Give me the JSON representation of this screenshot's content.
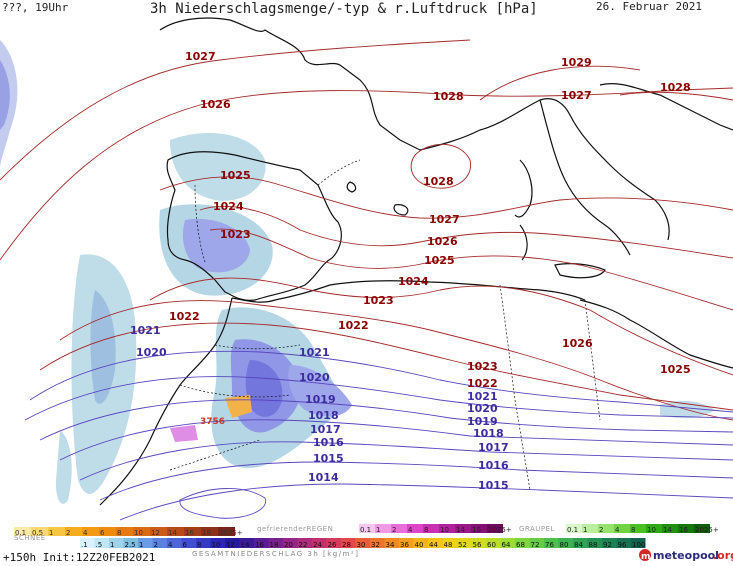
{
  "header": {
    "left": "???, 19Uhr",
    "center": "3h Niederschlagsmenge/-typ & r.Luftdruck [hPa]",
    "date": "26. Februar 2021"
  },
  "isobars_red": [
    "1027",
    "1026",
    "1028",
    "1029",
    "1027",
    "1028",
    "1028",
    "1025",
    "1024",
    "1023",
    "1027",
    "1026",
    "1025",
    "1024",
    "1023",
    "1022",
    "1022",
    "1026",
    "1025",
    "1023",
    "1022"
  ],
  "isobars_blue": [
    "1021",
    "1020",
    "1021",
    "1020",
    "1019",
    "1018",
    "1017",
    "1016",
    "1015",
    "1014",
    "1021",
    "1020",
    "1019",
    "1018",
    "1017",
    "1016",
    "1015"
  ],
  "precip_label": "3756",
  "legend": {
    "snow": {
      "title": "SCHNEE",
      "labels": [
        "0.1",
        "0.5",
        "1",
        "2",
        "4",
        "6",
        "8",
        "10",
        "12",
        "14",
        "16",
        "18",
        "2025+"
      ]
    },
    "freezing": {
      "title": "gefrierenderREGEN",
      "labels": [
        "0.1",
        "1",
        "2",
        "4",
        "8",
        "10",
        "14",
        "16",
        "2025+"
      ]
    },
    "graupel": {
      "title": "GRAUPEL",
      "labels": [
        "0.1",
        "1",
        "2",
        "4",
        "8",
        "10",
        "14",
        "16",
        "2025+"
      ]
    },
    "total": {
      "title": "GESAMTNIEDERSCHLAG 3h [kg/m²]",
      "labels": [
        ".1",
        ".5",
        "1",
        "2.5",
        "1",
        "2",
        "4",
        "6",
        "8",
        "10",
        "12",
        "14",
        "16",
        "18",
        "20",
        "22",
        "24",
        "26",
        "28",
        "30",
        "32",
        "34",
        "36",
        "40",
        "44",
        "48",
        "52",
        "56",
        "60",
        "64",
        "68",
        "72",
        "76",
        "80",
        "84",
        "88",
        "92",
        "96",
        "100"
      ]
    }
  },
  "footer": {
    "init": "+150h Init:12Z20FEB2021",
    "brand": "meteopool",
    "brand_tld": ".org"
  }
}
